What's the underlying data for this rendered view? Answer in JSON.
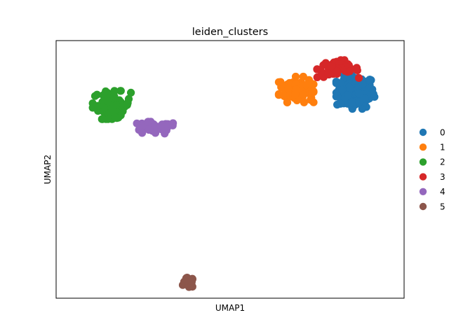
{
  "chart_data": {
    "type": "scatter",
    "title": "leiden_clusters",
    "xlabel": "UMAP1",
    "ylabel": "UMAP2",
    "xticks": [],
    "yticks": [],
    "xlim": [
      0,
      100
    ],
    "ylim": [
      0,
      100
    ],
    "grid": false,
    "legend_position": "right, outside plot",
    "series": [
      {
        "name": "0",
        "color": "#1f77b4",
        "center": [
          86,
          80
        ],
        "spread": [
          5.5,
          6.5
        ],
        "count": 130
      },
      {
        "name": "1",
        "color": "#ff7f0e",
        "center": [
          69,
          81
        ],
        "spread": [
          5.0,
          5.0
        ],
        "count": 95
      },
      {
        "name": "2",
        "color": "#2ca02c",
        "center": [
          16,
          75
        ],
        "spread": [
          5.5,
          5.5
        ],
        "count": 85
      },
      {
        "name": "3",
        "color": "#d62728",
        "center": [
          81,
          89
        ],
        "spread": [
          6.0,
          3.5
        ],
        "count": 55
      },
      {
        "name": "4",
        "color": "#9467bd",
        "center": [
          28,
          66
        ],
        "spread": [
          7.0,
          2.5
        ],
        "count": 40
      },
      {
        "name": "5",
        "color": "#8c564b",
        "center": [
          38,
          6
        ],
        "spread": [
          1.6,
          2.0
        ],
        "count": 28
      }
    ]
  }
}
